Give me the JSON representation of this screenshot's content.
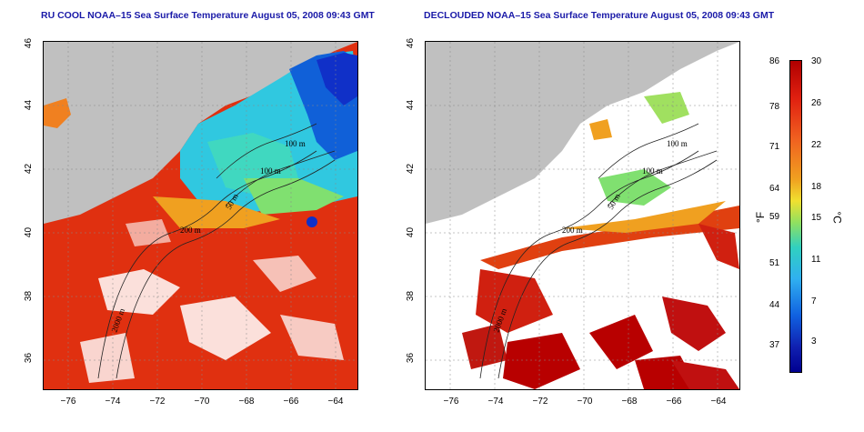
{
  "left_panel": {
    "title": "RU COOL NOAA–15 Sea Surface Temperature August 05, 2008 09:43 GMT"
  },
  "right_panel": {
    "title": "DECLOUDED NOAA–15 Sea Surface Temperature August 05, 2008 09:43 GMT"
  },
  "axes": {
    "x_ticks": [
      "−76",
      "−74",
      "−72",
      "−70",
      "−68",
      "−66",
      "−64"
    ],
    "y_ticks": [
      "46",
      "44",
      "42",
      "40",
      "38",
      "36"
    ]
  },
  "contour_labels": [
    "100 m",
    "100 m",
    "50 m",
    "200 m",
    "2000 m"
  ],
  "colorbar": {
    "fahrenheit_unit": "°F",
    "celsius_unit": "°C",
    "fahrenheit_labels": [
      "86",
      "78",
      "71",
      "64",
      "59",
      "51",
      "44",
      "37"
    ],
    "celsius_labels": [
      "30",
      "26",
      "22",
      "18",
      "15",
      "11",
      "7",
      "3"
    ]
  },
  "colors": {
    "land": "#c0c0c0",
    "cloud": "#ffffff",
    "cold": "#1030c8",
    "cool": "#30c8e0",
    "mild": "#80e070",
    "warm": "#f0a020",
    "hot": "#e03010",
    "very_hot": "#b80000",
    "title": "#1a1aa8"
  }
}
